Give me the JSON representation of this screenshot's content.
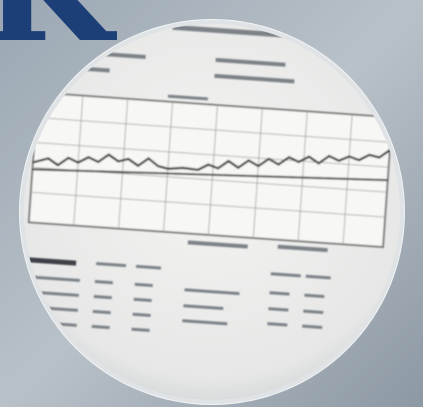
{
  "logo_letter": "K"
}
